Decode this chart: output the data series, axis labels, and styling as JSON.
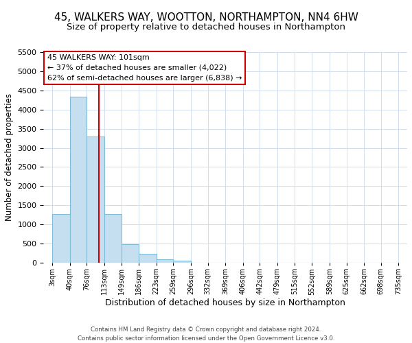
{
  "title": "45, WALKERS WAY, WOOTTON, NORTHAMPTON, NN4 6HW",
  "subtitle": "Size of property relative to detached houses in Northampton",
  "xlabel": "Distribution of detached houses by size in Northampton",
  "ylabel": "Number of detached properties",
  "bar_edges": [
    3,
    40,
    76,
    113,
    149,
    186,
    223,
    259,
    296,
    332,
    369,
    406,
    442,
    479,
    515,
    552,
    589,
    625,
    662,
    698,
    735
  ],
  "bar_heights": [
    1270,
    4330,
    3290,
    1280,
    480,
    230,
    90,
    50,
    0,
    0,
    0,
    0,
    0,
    0,
    0,
    0,
    0,
    0,
    0,
    0
  ],
  "bar_color": "#c5dff0",
  "bar_edgecolor": "#7fbcd8",
  "property_line_x": 101,
  "property_line_color": "#cc0000",
  "ylim": [
    0,
    5500
  ],
  "yticks": [
    0,
    500,
    1000,
    1500,
    2000,
    2500,
    3000,
    3500,
    4000,
    4500,
    5000,
    5500
  ],
  "annotation_title": "45 WALKERS WAY: 101sqm",
  "annotation_line1": "← 37% of detached houses are smaller (4,022)",
  "annotation_line2": "62% of semi-detached houses are larger (6,838) →",
  "annotation_box_facecolor": "#ffffff",
  "annotation_box_edgecolor": "#cc0000",
  "footer_line1": "Contains HM Land Registry data © Crown copyright and database right 2024.",
  "footer_line2": "Contains public sector information licensed under the Open Government Licence v3.0.",
  "background_color": "#ffffff",
  "grid_color": "#c8d8ea",
  "title_fontsize": 11,
  "subtitle_fontsize": 9.5,
  "ylabel_fontsize": 8.5,
  "xlabel_fontsize": 9,
  "tick_labels": [
    "3sqm",
    "40sqm",
    "76sqm",
    "113sqm",
    "149sqm",
    "186sqm",
    "223sqm",
    "259sqm",
    "296sqm",
    "332sqm",
    "369sqm",
    "406sqm",
    "442sqm",
    "479sqm",
    "515sqm",
    "552sqm",
    "589sqm",
    "625sqm",
    "662sqm",
    "698sqm",
    "735sqm"
  ]
}
